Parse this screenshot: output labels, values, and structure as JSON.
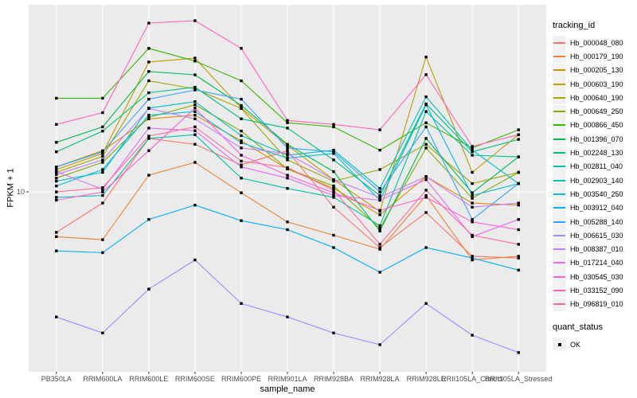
{
  "figure": {
    "background": "#FFFFFF",
    "panel_background": "#EBEBEB",
    "grid_color": "#FFFFFF",
    "tick_text_color": "#4D4D4D",
    "tick_mark_color": "#333333"
  },
  "chart_data": {
    "type": "line",
    "title": "",
    "xlabel": "sample_name",
    "ylabel": "FPKM + 1",
    "legend_position": "right",
    "grid": "on",
    "point_shape": "filled-square",
    "point_color": "#000000",
    "categories": [
      "PB350LA",
      "RRIM600LA",
      "RRIM600LE",
      "RRIM600SE",
      "RRIM600PE",
      "RRIM901LA",
      "RRIM928BA",
      "RRIM928LA",
      "RRIM928LE",
      "RRII105LA_Control",
      "RRII105LA_Stressed"
    ],
    "y_axis": {
      "scale": "log10",
      "domain_log": [
        0.109,
        1.927
      ],
      "ticks": [
        {
          "value": 10,
          "label": "10"
        }
      ]
    },
    "series": [
      {
        "name": "Hb_000048_080",
        "color": "#F8766D",
        "values": [
          6.3,
          8.8,
          18.4,
          17.2,
          13.6,
          16.0,
          8.4,
          5.3,
          7.9,
          4.8,
          4.7
        ]
      },
      {
        "name": "Hb_000179_190",
        "color": "#EA8331",
        "values": [
          6.0,
          5.8,
          12.1,
          14.0,
          9.9,
          7.1,
          6.1,
          5.2,
          9.6,
          4.6,
          4.8
        ]
      },
      {
        "name": "Hb_000205_130",
        "color": "#D89000",
        "values": [
          13.3,
          16.0,
          23.0,
          24.0,
          17.9,
          13.0,
          10.4,
          7.7,
          11.9,
          8.8,
          8.6
        ]
      },
      {
        "name": "Hb_000603_190",
        "color": "#C09B00",
        "values": [
          12.9,
          15.5,
          44.0,
          46.0,
          26.0,
          17.0,
          11.5,
          8.0,
          46.6,
          12.5,
          19.2
        ]
      },
      {
        "name": "Hb_000640_190",
        "color": "#A3A500",
        "values": [
          12.5,
          15.0,
          35.5,
          32.4,
          25.9,
          14.4,
          11.3,
          12.9,
          17.2,
          11.0,
          12.5
        ]
      },
      {
        "name": "Hb_000649_250",
        "color": "#7CAE00",
        "values": [
          11.7,
          14.0,
          23.4,
          27.0,
          20.0,
          13.0,
          10.7,
          6.6,
          16.5,
          9.3,
          12.5
        ]
      },
      {
        "name": "Hb_000866_450",
        "color": "#39B600",
        "values": [
          29.1,
          29.1,
          51.4,
          44.5,
          35.5,
          22.0,
          21.0,
          16.1,
          22.0,
          16.5,
          20.3
        ]
      },
      {
        "name": "Hb_001396_070",
        "color": "#00BB4E",
        "values": [
          17.6,
          21.0,
          39.5,
          38.0,
          26.8,
          17.2,
          12.6,
          6.4,
          18.4,
          9.9,
          14.9
        ]
      },
      {
        "name": "Hb_002248_130",
        "color": "#00BF7D",
        "values": [
          15.8,
          20.0,
          31.0,
          33.0,
          23.0,
          20.7,
          14.4,
          9.6,
          27.3,
          15.8,
          18.2
        ]
      },
      {
        "name": "Hb_002811_040",
        "color": "#00C1A3",
        "values": [
          9.4,
          9.6,
          18.4,
          19.2,
          11.7,
          10.4,
          9.4,
          6.8,
          25.0,
          15.2,
          14.9
        ]
      },
      {
        "name": "Hb_002903_140",
        "color": "#00BFC4",
        "values": [
          11.3,
          12.5,
          26.0,
          28.0,
          19.0,
          15.2,
          16.1,
          10.4,
          29.6,
          16.1,
          11.0
        ]
      },
      {
        "name": "Hb_003540_250",
        "color": "#00BAE0",
        "values": [
          10.7,
          12.9,
          24.0,
          25.0,
          17.5,
          14.7,
          15.5,
          9.1,
          27.0,
          9.6,
          11.0
        ]
      },
      {
        "name": "Hb_003912_040",
        "color": "#00B0F6",
        "values": [
          5.1,
          5.0,
          7.3,
          8.6,
          7.2,
          6.5,
          5.3,
          4.0,
          5.3,
          4.7,
          4.1
        ]
      },
      {
        "name": "Hb_005288_140",
        "color": "#35A2FF",
        "values": [
          13.3,
          15.8,
          28.8,
          32.0,
          28.8,
          16.5,
          15.8,
          10.0,
          21.0,
          7.3,
          11.0
        ]
      },
      {
        "name": "Hb_006615_030",
        "color": "#9590FF",
        "values": [
          2.4,
          2.0,
          3.3,
          4.6,
          2.8,
          2.4,
          2.0,
          1.75,
          2.8,
          1.95,
          1.6
        ]
      },
      {
        "name": "Hb_008387_010",
        "color": "#C77CFF",
        "values": [
          12.2,
          14.4,
          25.9,
          23.0,
          16.5,
          15.5,
          11.5,
          9.4,
          11.9,
          8.4,
          8.8
        ]
      },
      {
        "name": "Hb_017214_040",
        "color": "#E76BF3",
        "values": [
          12.6,
          10.3,
          20.7,
          20.1,
          13.3,
          11.7,
          9.6,
          9.1,
          11.5,
          6.0,
          7.3
        ]
      },
      {
        "name": "Hb_030545_030",
        "color": "#FA62DB",
        "values": [
          9.1,
          10.0,
          16.0,
          26.0,
          15.2,
          12.1,
          9.9,
          8.1,
          9.4,
          7.1,
          6.5
        ]
      },
      {
        "name": "Hb_033152_090",
        "color": "#FF62BC",
        "values": [
          21.6,
          24.7,
          68.6,
          70.5,
          51.4,
          22.6,
          21.6,
          20.3,
          38.1,
          16.8,
          19.2
        ]
      },
      {
        "name": "Hb_096819_010",
        "color": "#FF6A98",
        "values": [
          10.0,
          10.5,
          18.9,
          21.0,
          14.2,
          13.2,
          10.2,
          5.5,
          10.2,
          6.1,
          5.5
        ]
      }
    ]
  },
  "legend": {
    "tracking_id_title": "tracking_id",
    "quant_status_title": "quant_status",
    "quant_status_items": [
      {
        "label": "OK"
      }
    ]
  }
}
